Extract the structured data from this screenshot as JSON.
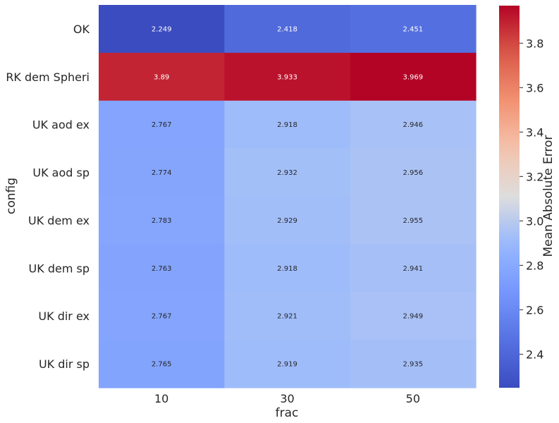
{
  "chart_data": {
    "type": "heatmap",
    "xlabel": "frac",
    "ylabel": "config",
    "x_categories": [
      "10",
      "30",
      "50"
    ],
    "y_categories": [
      "OK",
      "RK dem Spheri",
      "UK aod ex",
      "UK aod sp",
      "UK dem ex",
      "UK dem sp",
      "UK dir ex",
      "UK dir sp"
    ],
    "values": [
      [
        2.249,
        2.418,
        2.451
      ],
      [
        3.89,
        3.933,
        3.969
      ],
      [
        2.767,
        2.918,
        2.946
      ],
      [
        2.774,
        2.932,
        2.956
      ],
      [
        2.783,
        2.929,
        2.955
      ],
      [
        2.763,
        2.918,
        2.941
      ],
      [
        2.767,
        2.921,
        2.949
      ],
      [
        2.765,
        2.919,
        2.935
      ]
    ],
    "value_labels": [
      [
        "2.249",
        "2.418",
        "2.451"
      ],
      [
        "3.89",
        "3.933",
        "3.969"
      ],
      [
        "2.767",
        "2.918",
        "2.946"
      ],
      [
        "2.774",
        "2.932",
        "2.956"
      ],
      [
        "2.783",
        "2.929",
        "2.955"
      ],
      [
        "2.763",
        "2.918",
        "2.941"
      ],
      [
        "2.767",
        "2.921",
        "2.949"
      ],
      [
        "2.765",
        "2.919",
        "2.935"
      ]
    ],
    "colormap": "coolwarm",
    "color_range": [
      2.249,
      3.969
    ],
    "colorbar": {
      "label": "Mean Absolute Error",
      "ticks": [
        2.4,
        2.6,
        2.8,
        3.0,
        3.2,
        3.4,
        3.6,
        3.8
      ],
      "tick_labels": [
        "2.4",
        "2.6",
        "2.8",
        "3.0",
        "3.2",
        "3.4",
        "3.6",
        "3.8"
      ]
    },
    "grid": false
  }
}
